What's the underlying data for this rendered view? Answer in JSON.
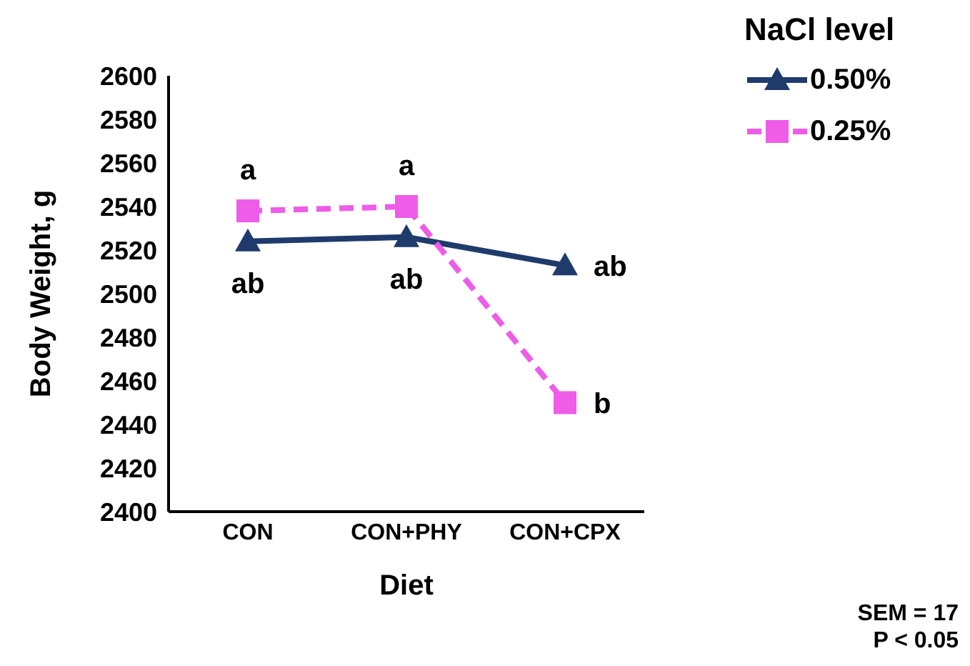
{
  "chart_data": {
    "type": "line",
    "xlabel": "Diet",
    "ylabel": "Body Weight, g",
    "legend_title": "NaCl level",
    "legend": "top right",
    "categories": [
      "CON",
      "CON+PHY",
      "CON+CPX"
    ],
    "series": [
      {
        "name": "0.50%",
        "color": "#1f3b6b",
        "values": [
          2524,
          2526,
          2513
        ],
        "marker": "triangle",
        "line_style": "solid"
      },
      {
        "name": "0.25%",
        "color": "#ee5ce8",
        "values": [
          2538,
          2540,
          2450
        ],
        "marker": "square",
        "line_style": "dashed"
      }
    ],
    "ylim": [
      2400,
      2600
    ],
    "yticks": [
      2400,
      2420,
      2440,
      2460,
      2480,
      2500,
      2520,
      2540,
      2560,
      2580,
      2600
    ],
    "grid": false,
    "annotations": [
      {
        "text": "a",
        "x": "CON",
        "y": 2538
      },
      {
        "text": "a",
        "x": "CON+PHY",
        "y": 2540
      },
      {
        "text": "b",
        "x": "CON+CPX",
        "y": 2450
      },
      {
        "text": "ab",
        "x": "CON",
        "y": 2524
      },
      {
        "text": "ab",
        "x": "CON+PHY",
        "y": 2526
      },
      {
        "text": "ab",
        "x": "CON+CPX",
        "y": 2513
      },
      "SEM = 17",
      "P < 0.05"
    ]
  }
}
